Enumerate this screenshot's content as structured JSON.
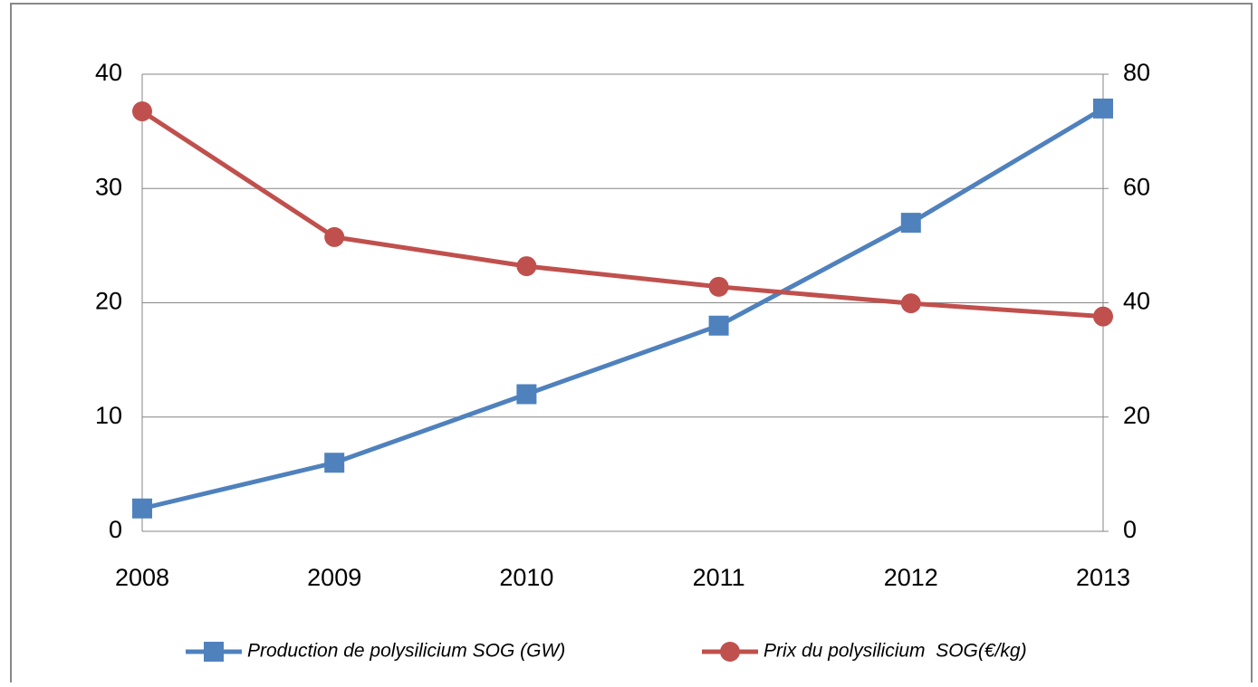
{
  "chart_data": {
    "type": "line",
    "categories": [
      "2008",
      "2009",
      "2010",
      "2011",
      "2012",
      "2013"
    ],
    "series": [
      {
        "name": "Production de polysilicium SOG (GW)",
        "color": "#4f81bd",
        "marker": "square",
        "values": [
          2,
          6,
          12,
          18,
          27,
          37
        ]
      },
      {
        "name": "Prix du polysilicium  SOG(€/kg)",
        "color": "#c0504d",
        "marker": "circle",
        "axis": "y2",
        "values": [
          73.5,
          51.5,
          46.4,
          42.8,
          39.9,
          37.6
        ]
      }
    ],
    "ylim": [
      0,
      40
    ],
    "yticks": [
      0,
      10,
      20,
      30,
      40
    ],
    "y2lim": [
      0,
      80
    ],
    "y2ticks": [
      0,
      20,
      40,
      60,
      80
    ],
    "grid": true,
    "legend": "bottom"
  }
}
